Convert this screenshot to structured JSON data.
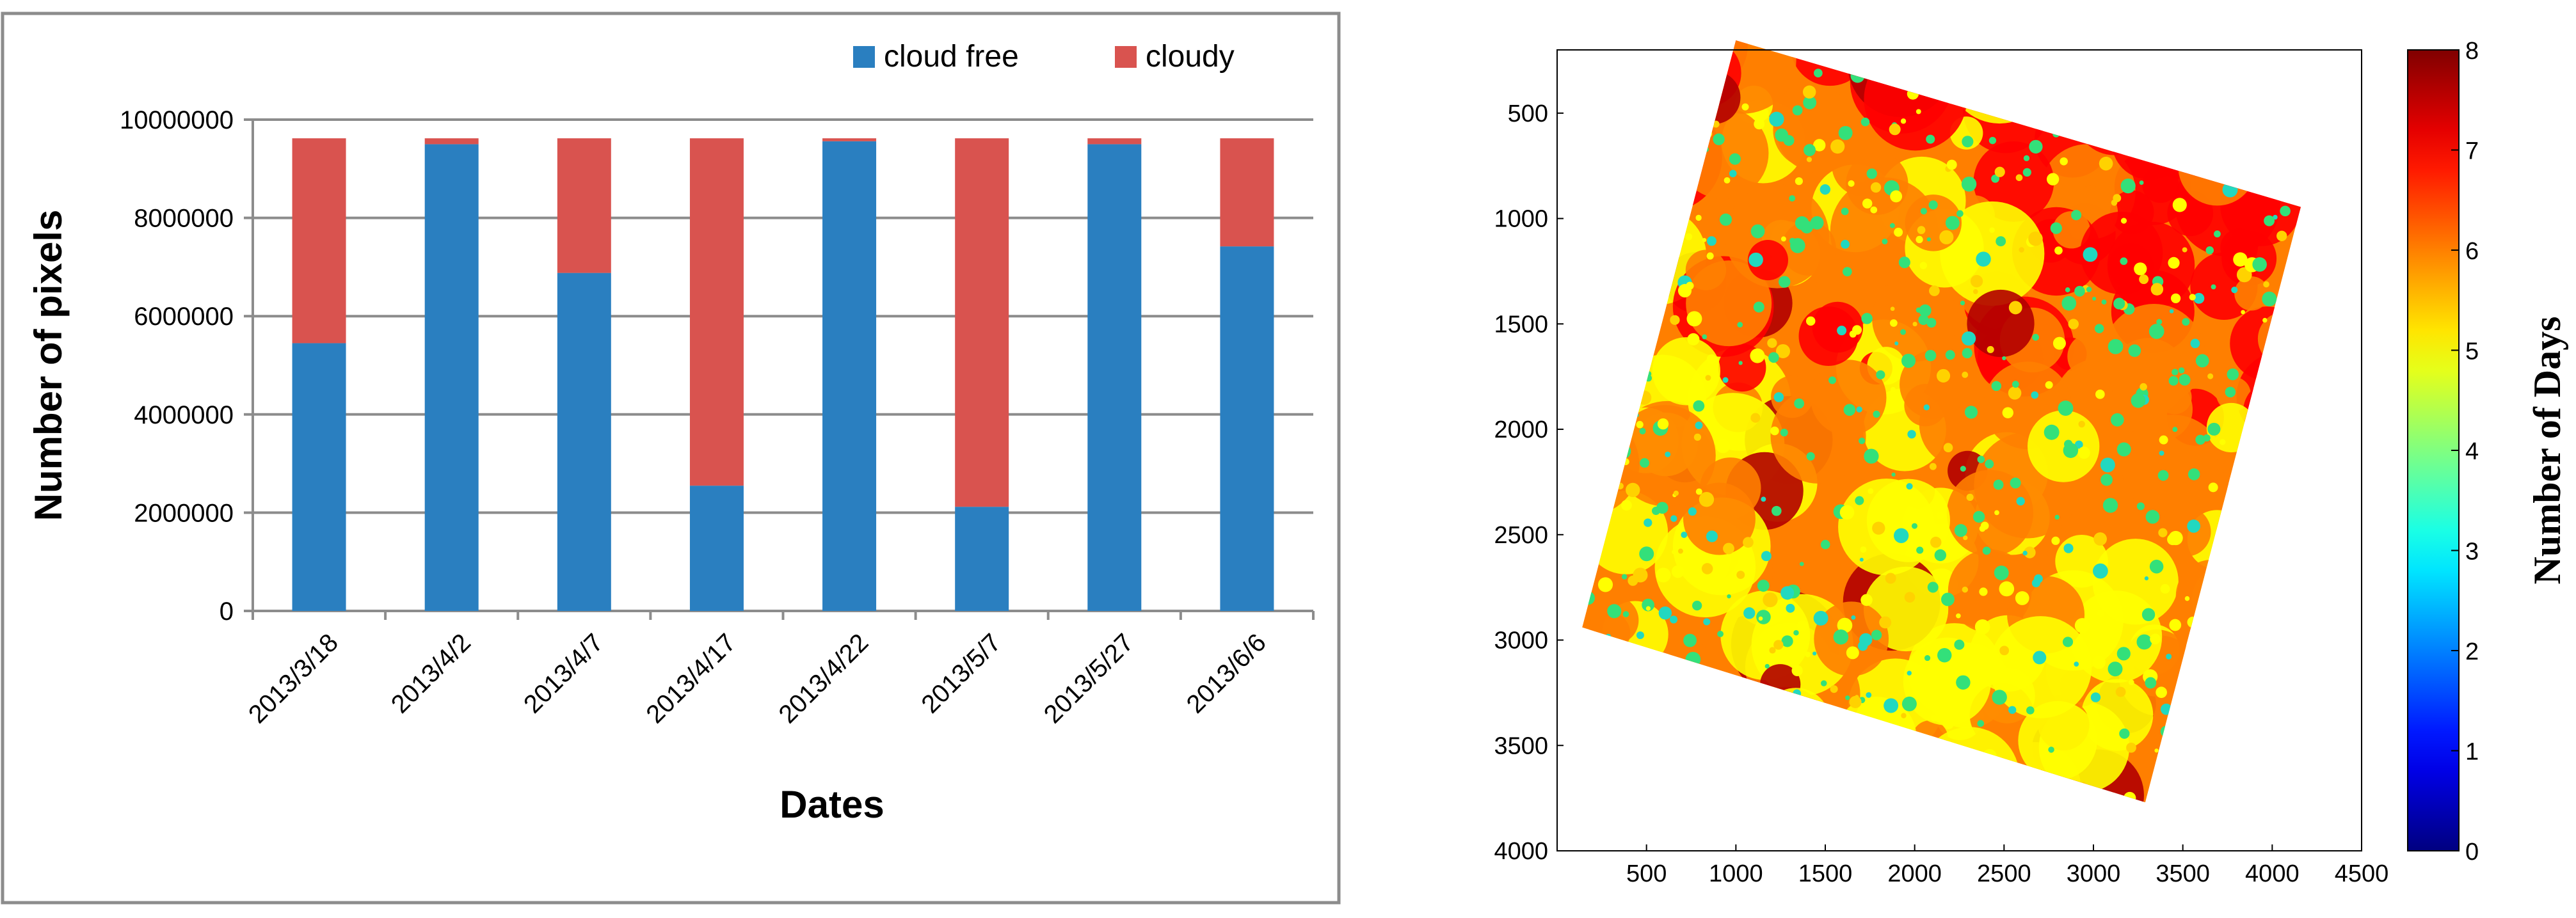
{
  "chart_data": [
    {
      "type": "bar",
      "stacked": true,
      "categories": [
        "2013/3/18",
        "2013/4/2",
        "2013/4/7",
        "2013/4/17",
        "2013/4/22",
        "2013/5/7",
        "2013/5/27",
        "2013/6/6"
      ],
      "series": [
        {
          "name": "cloud free",
          "color": "#2a7fc0",
          "values": [
            5450000,
            9500000,
            6880000,
            2550000,
            9560000,
            2120000,
            9500000,
            7420000
          ]
        },
        {
          "name": "cloudy",
          "color": "#d9534f",
          "values": [
            4170000,
            120000,
            2740000,
            7070000,
            60000,
            7500000,
            120000,
            2200000
          ]
        }
      ],
      "xlabel": "Dates",
      "ylabel": "Number of pixels",
      "ylim": [
        0,
        10000000
      ],
      "yticks": [
        "0",
        "2000000",
        "4000000",
        "6000000",
        "8000000",
        "10000000"
      ],
      "grid": true,
      "legend": "top-right"
    },
    {
      "type": "heatmap",
      "xticks": [
        "500",
        "1000",
        "1500",
        "2000",
        "2500",
        "3000",
        "3500",
        "4000",
        "4500"
      ],
      "yticks": [
        "500",
        "1000",
        "1500",
        "2000",
        "2500",
        "3000",
        "3500",
        "4000"
      ],
      "xlim": [
        0,
        4500
      ],
      "ylim": [
        4000,
        200
      ],
      "colorbar": {
        "label": "Number of Days",
        "range": [
          0,
          8
        ],
        "ticks": [
          "0",
          "1",
          "2",
          "3",
          "4",
          "5",
          "6",
          "7",
          "8"
        ],
        "colormap": "jet"
      },
      "dominant_colors": [
        "#ff7f00",
        "#ffff00",
        "#ff0000",
        "#33e07a",
        "#b30000"
      ]
    }
  ]
}
